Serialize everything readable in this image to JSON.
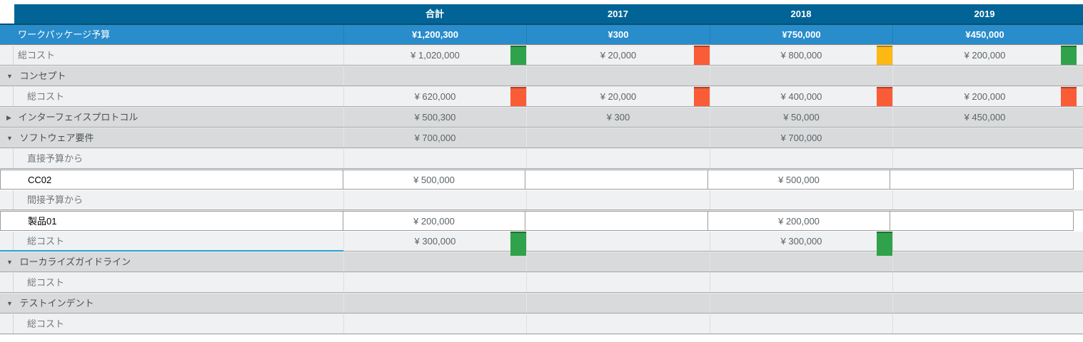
{
  "table": {
    "columns": [
      "",
      "合計",
      "2017",
      "2018",
      "2019"
    ],
    "rows": [
      {
        "type": "blue",
        "label": "ワークパッケージ予算",
        "values": [
          "¥1,200,300",
          "¥300",
          "¥750,000",
          "¥450,000"
        ]
      },
      {
        "type": "light",
        "label": "総コスト",
        "values": [
          "¥ 1,020,000",
          "¥ 20,000",
          "¥ 800,000",
          "¥ 200,000"
        ],
        "indicators": [
          "green",
          "orange",
          "yellow",
          "green"
        ]
      },
      {
        "type": "group",
        "arrow": "▼",
        "label": "コンセプト"
      },
      {
        "type": "light",
        "label": "総コスト",
        "values": [
          "¥ 620,000",
          "¥ 20,000",
          "¥ 400,000",
          "¥ 200,000"
        ],
        "indicators": [
          "orange",
          "orange",
          "orange",
          "orange"
        ]
      },
      {
        "type": "group",
        "arrow": "▶",
        "label": "インターフェイスプロトコル",
        "values": [
          "¥ 500,300",
          "¥ 300",
          "¥ 50,000",
          "¥ 450,000"
        ]
      },
      {
        "type": "group",
        "arrow": "▼",
        "label": "ソフトウェア要件",
        "values": [
          "¥ 700,000",
          "",
          "¥ 700,000",
          ""
        ]
      },
      {
        "type": "light",
        "label": "直接予算から"
      },
      {
        "type": "edit",
        "label": "CC02",
        "values": [
          "¥ 500,000",
          "",
          "¥ 500,000",
          ""
        ]
      },
      {
        "type": "light",
        "label": "間接予算から"
      },
      {
        "type": "edit",
        "label": "製品01",
        "values": [
          "¥ 200,000",
          "",
          "¥ 200,000",
          ""
        ]
      },
      {
        "type": "light",
        "label": "総コスト",
        "selected": true,
        "values": [
          "¥ 300,000",
          "",
          "¥ 300,000",
          ""
        ],
        "indicators": [
          "green",
          "",
          "green",
          ""
        ]
      },
      {
        "type": "group",
        "arrow": "▼",
        "label": "ローカライズガイドライン"
      },
      {
        "type": "light",
        "label": "総コスト"
      },
      {
        "type": "group",
        "arrow": "▼",
        "label": "テストインデント"
      },
      {
        "type": "light",
        "label": "総コスト"
      }
    ],
    "colors": {
      "header_bg": "#026496",
      "summary_row_bg": "#298ccb",
      "group_row_bg": "#d8dadb",
      "row_bg": "#f0f1f2",
      "indicator_green": "#2fa24b",
      "indicator_orange": "#fa5c38",
      "indicator_yellow": "#fcb813",
      "selection_underline": "#2aa0dc"
    }
  }
}
